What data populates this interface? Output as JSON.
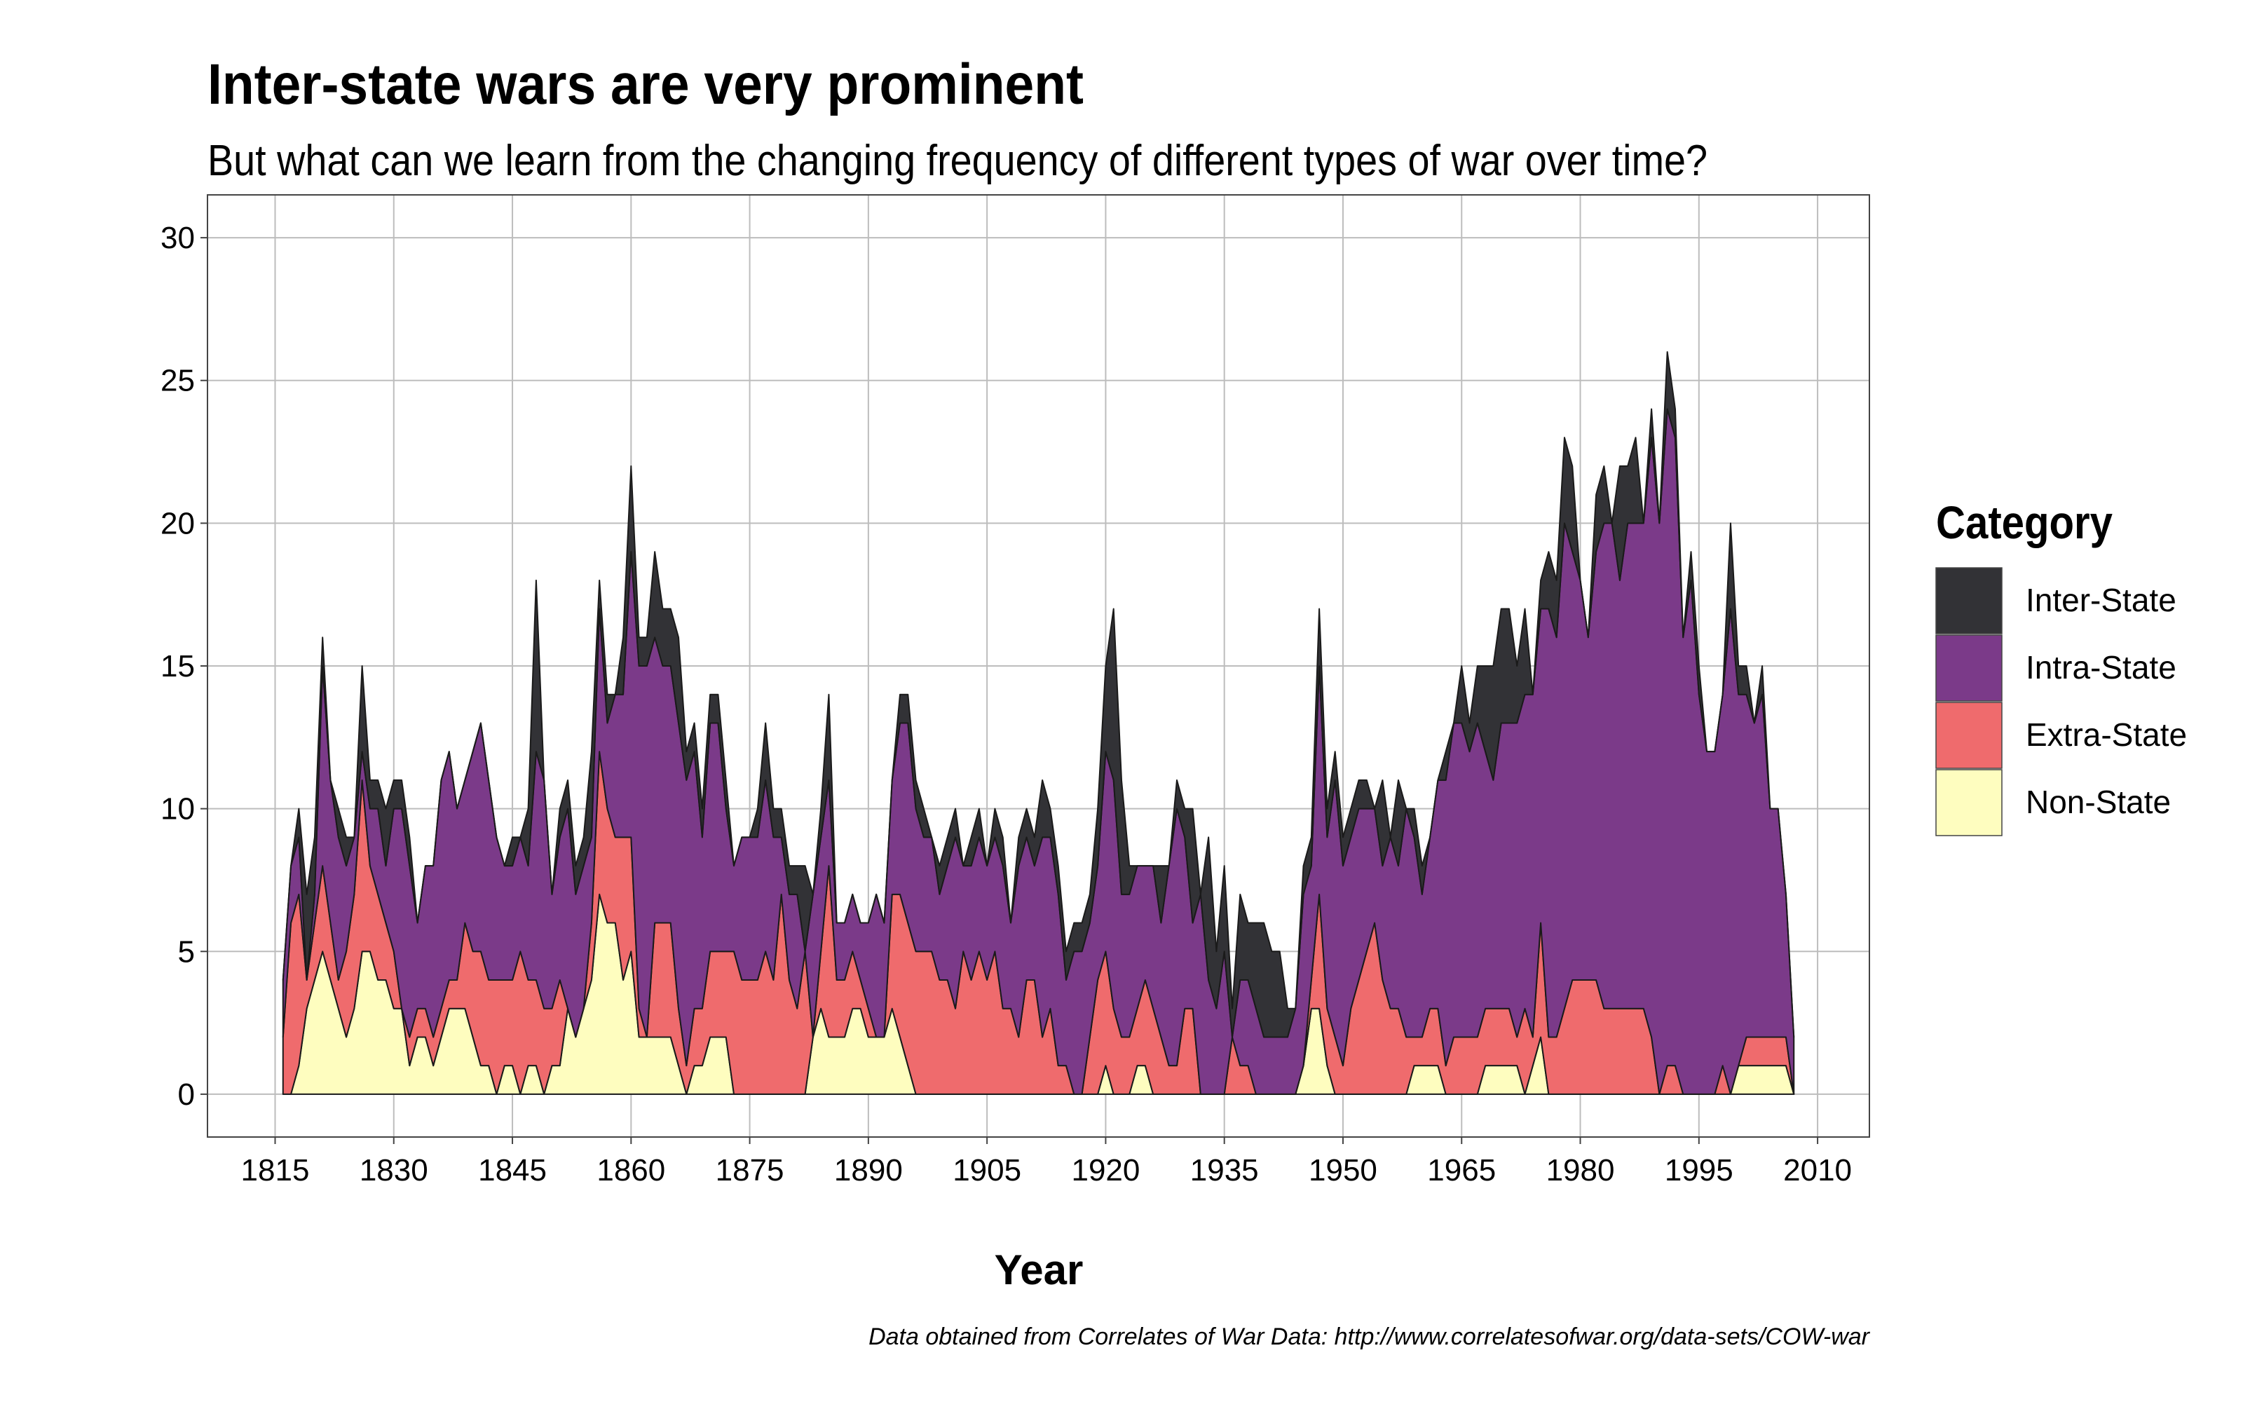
{
  "chart_data": {
    "type": "stacked_area",
    "title": "Inter-state wars are very prominent",
    "subtitle": "But what can we learn from the changing frequency of different types of war over time?",
    "x_label": "Year",
    "caption": "Data obtained from Correlates of War Data: http://www.correlatesofwar.org/data-sets/COW-war",
    "legend_title": "Category",
    "legend_position": "right",
    "grid": true,
    "x": [
      1816,
      1817,
      1818,
      1819,
      1820,
      1821,
      1822,
      1823,
      1824,
      1825,
      1826,
      1827,
      1828,
      1829,
      1830,
      1831,
      1832,
      1833,
      1834,
      1835,
      1836,
      1837,
      1838,
      1839,
      1840,
      1841,
      1842,
      1843,
      1844,
      1845,
      1846,
      1847,
      1848,
      1849,
      1850,
      1851,
      1852,
      1853,
      1854,
      1855,
      1856,
      1857,
      1858,
      1859,
      1860,
      1861,
      1862,
      1863,
      1864,
      1865,
      1866,
      1867,
      1868,
      1869,
      1870,
      1871,
      1872,
      1873,
      1874,
      1875,
      1876,
      1877,
      1878,
      1879,
      1880,
      1881,
      1882,
      1883,
      1884,
      1885,
      1886,
      1887,
      1888,
      1889,
      1890,
      1891,
      1892,
      1893,
      1894,
      1895,
      1896,
      1897,
      1898,
      1899,
      1900,
      1901,
      1902,
      1903,
      1904,
      1905,
      1906,
      1907,
      1908,
      1909,
      1910,
      1911,
      1912,
      1913,
      1914,
      1915,
      1916,
      1917,
      1918,
      1919,
      1920,
      1921,
      1922,
      1923,
      1924,
      1925,
      1926,
      1927,
      1928,
      1929,
      1930,
      1931,
      1932,
      1933,
      1934,
      1935,
      1936,
      1937,
      1938,
      1939,
      1940,
      1941,
      1942,
      1943,
      1944,
      1945,
      1946,
      1947,
      1948,
      1949,
      1950,
      1951,
      1952,
      1953,
      1954,
      1955,
      1956,
      1957,
      1958,
      1959,
      1960,
      1961,
      1962,
      1963,
      1964,
      1965,
      1966,
      1967,
      1968,
      1969,
      1970,
      1971,
      1972,
      1973,
      1974,
      1975,
      1976,
      1977,
      1978,
      1979,
      1980,
      1981,
      1982,
      1983,
      1984,
      1985,
      1986,
      1987,
      1988,
      1989,
      1990,
      1991,
      1992,
      1993,
      1994,
      1995,
      1996,
      1997,
      1998,
      1999,
      2000,
      2001,
      2002,
      2003,
      2004,
      2005,
      2006,
      2007
    ],
    "series": [
      {
        "name": "Inter-State",
        "color": "#323236",
        "values": [
          0,
          0,
          1,
          3,
          2,
          1,
          0,
          1,
          1,
          0,
          3,
          1,
          1,
          2,
          1,
          1,
          1,
          0,
          0,
          0,
          0,
          0,
          0,
          0,
          0,
          0,
          0,
          0,
          0,
          1,
          0,
          2,
          6,
          0,
          0,
          1,
          1,
          1,
          1,
          3,
          1,
          1,
          0,
          2,
          3,
          1,
          1,
          3,
          2,
          2,
          3,
          1,
          1,
          1,
          1,
          1,
          1,
          0,
          0,
          0,
          1,
          2,
          1,
          1,
          1,
          1,
          3,
          0,
          1,
          3,
          0,
          0,
          0,
          0,
          0,
          0,
          0,
          0,
          1,
          1,
          1,
          1,
          0,
          1,
          1,
          1,
          0,
          1,
          1,
          0,
          1,
          1,
          0,
          1,
          1,
          1,
          2,
          1,
          1,
          1,
          1,
          1,
          1,
          2,
          3,
          6,
          4,
          1,
          0,
          0,
          0,
          2,
          0,
          1,
          1,
          4,
          0,
          5,
          2,
          3,
          1,
          3,
          2,
          3,
          4,
          3,
          3,
          1,
          0,
          1,
          1,
          2,
          1,
          1,
          1,
          1,
          1,
          1,
          0,
          3,
          0,
          3,
          0,
          1,
          1,
          0,
          0,
          1,
          0,
          2,
          1,
          2,
          3,
          4,
          4,
          4,
          2,
          3,
          0,
          1,
          2,
          2,
          3,
          3,
          0,
          0,
          2,
          2,
          0,
          4,
          2,
          3,
          0,
          1,
          0,
          2,
          1,
          0,
          1,
          1,
          0,
          0,
          0,
          3,
          1,
          1,
          0,
          1,
          0,
          0,
          0,
          0
        ]
      },
      {
        "name": "Intra-State",
        "color": "#7b3a89",
        "values": [
          2,
          2,
          2,
          0,
          1,
          7,
          5,
          5,
          3,
          2,
          1,
          2,
          3,
          2,
          5,
          7,
          6,
          3,
          5,
          6,
          8,
          8,
          6,
          5,
          7,
          8,
          7,
          5,
          4,
          4,
          4,
          4,
          8,
          8,
          4,
          5,
          7,
          5,
          5,
          3,
          5,
          3,
          5,
          5,
          10,
          12,
          13,
          10,
          9,
          9,
          10,
          10,
          9,
          6,
          8,
          8,
          5,
          3,
          5,
          5,
          5,
          6,
          5,
          2,
          3,
          4,
          0,
          5,
          4,
          3,
          2,
          2,
          2,
          2,
          3,
          5,
          4,
          4,
          6,
          7,
          5,
          4,
          4,
          3,
          4,
          6,
          3,
          4,
          4,
          4,
          4,
          5,
          3,
          6,
          5,
          4,
          7,
          6,
          6,
          3,
          5,
          5,
          4,
          4,
          7,
          8,
          5,
          5,
          5,
          4,
          5,
          4,
          7,
          9,
          6,
          3,
          7,
          4,
          3,
          5,
          0,
          3,
          3,
          3,
          2,
          2,
          2,
          2,
          3,
          6,
          4,
          8,
          6,
          9,
          7,
          6,
          6,
          5,
          4,
          4,
          6,
          5,
          8,
          7,
          5,
          6,
          8,
          10,
          11,
          11,
          10,
          11,
          9,
          8,
          10,
          10,
          11,
          11,
          12,
          11,
          15,
          14,
          17,
          15,
          14,
          12,
          15,
          17,
          17,
          15,
          17,
          17,
          17,
          21,
          20,
          23,
          22,
          16,
          18,
          14,
          12,
          12,
          13,
          17,
          13,
          12,
          11,
          12,
          8,
          8,
          5,
          2
        ]
      },
      {
        "name": "Extra-State",
        "color": "#ef6b6d",
        "values": [
          2,
          6,
          6,
          1,
          2,
          3,
          2,
          1,
          3,
          4,
          6,
          3,
          3,
          2,
          2,
          0,
          1,
          1,
          1,
          1,
          1,
          1,
          1,
          3,
          3,
          4,
          3,
          4,
          3,
          3,
          5,
          3,
          3,
          3,
          2,
          3,
          0,
          0,
          0,
          2,
          5,
          4,
          3,
          5,
          4,
          1,
          0,
          4,
          4,
          4,
          2,
          1,
          2,
          2,
          3,
          3,
          3,
          5,
          4,
          4,
          4,
          5,
          4,
          7,
          4,
          3,
          5,
          0,
          2,
          6,
          2,
          2,
          2,
          1,
          1,
          0,
          0,
          4,
          5,
          5,
          5,
          5,
          5,
          4,
          4,
          3,
          5,
          4,
          5,
          4,
          5,
          3,
          3,
          2,
          4,
          4,
          2,
          3,
          1,
          1,
          0,
          0,
          2,
          4,
          4,
          3,
          2,
          2,
          2,
          3,
          3,
          2,
          1,
          1,
          3,
          3,
          0,
          0,
          0,
          0,
          2,
          1,
          1,
          0,
          0,
          0,
          0,
          0,
          0,
          0,
          1,
          4,
          2,
          2,
          1,
          3,
          4,
          5,
          6,
          4,
          3,
          3,
          2,
          1,
          1,
          2,
          2,
          1,
          2,
          2,
          2,
          2,
          2,
          2,
          2,
          2,
          1,
          3,
          1,
          4,
          2,
          2,
          3,
          4,
          4,
          4,
          4,
          3,
          3,
          3,
          3,
          3,
          3,
          2,
          0,
          1,
          1,
          0,
          0,
          0,
          0,
          0,
          1,
          0,
          0,
          1,
          1,
          1,
          1,
          1,
          1,
          0
        ]
      },
      {
        "name": "Non-State",
        "color": "#fefdbf",
        "values": [
          0,
          0,
          1,
          3,
          4,
          5,
          4,
          3,
          2,
          3,
          5,
          5,
          4,
          4,
          3,
          3,
          1,
          2,
          2,
          1,
          2,
          3,
          3,
          3,
          2,
          1,
          1,
          0,
          1,
          1,
          0,
          1,
          1,
          0,
          1,
          1,
          3,
          2,
          3,
          4,
          7,
          6,
          6,
          4,
          5,
          2,
          2,
          2,
          2,
          2,
          1,
          0,
          1,
          1,
          2,
          2,
          2,
          0,
          0,
          0,
          0,
          0,
          0,
          0,
          0,
          0,
          0,
          2,
          3,
          2,
          2,
          2,
          3,
          3,
          2,
          2,
          2,
          3,
          2,
          1,
          0,
          0,
          0,
          0,
          0,
          0,
          0,
          0,
          0,
          0,
          0,
          0,
          0,
          0,
          0,
          0,
          0,
          0,
          0,
          0,
          0,
          0,
          0,
          0,
          1,
          0,
          0,
          0,
          1,
          1,
          0,
          0,
          0,
          0,
          0,
          0,
          0,
          0,
          0,
          0,
          0,
          0,
          0,
          0,
          0,
          0,
          0,
          0,
          0,
          1,
          3,
          3,
          1,
          0,
          0,
          0,
          0,
          0,
          0,
          0,
          0,
          0,
          0,
          1,
          1,
          1,
          1,
          0,
          0,
          0,
          0,
          0,
          1,
          1,
          1,
          1,
          1,
          0,
          1,
          2,
          0,
          0,
          0,
          0,
          0,
          0,
          0,
          0,
          0,
          0,
          0,
          0,
          0,
          0,
          0,
          0,
          0,
          0,
          0,
          0,
          0,
          0,
          0,
          0,
          1,
          1,
          1,
          1,
          1,
          1,
          1,
          0
        ]
      }
    ],
    "xlim": [
      1806.45,
      2016.55
    ],
    "xticks": [
      1815,
      1830,
      1845,
      1860,
      1875,
      1890,
      1905,
      1920,
      1935,
      1950,
      1965,
      1980,
      1995,
      2010
    ],
    "ylim": [
      -1.5,
      31.5
    ],
    "yticks": [
      0,
      5,
      10,
      15,
      20,
      25,
      30
    ]
  }
}
